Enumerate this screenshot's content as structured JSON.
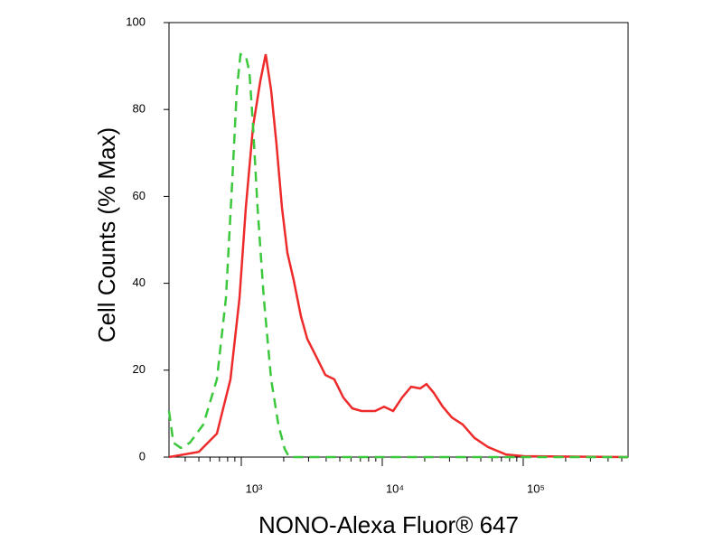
{
  "chart_data": {
    "type": "line",
    "y_label": "Cell Counts (% Max)",
    "x_label": "NONO-Alexa Fluor® 647",
    "xscale": "log",
    "xlim": [
      307,
      554600
    ],
    "xticks": [
      {
        "value": 1000,
        "label": "10³"
      },
      {
        "value": 10000,
        "label": "10⁴"
      },
      {
        "value": 100000,
        "label": "10⁵"
      }
    ],
    "ylim": [
      0,
      100
    ],
    "yticks": [
      0,
      20,
      40,
      60,
      80,
      100
    ],
    "series": [
      {
        "color": "#ee2a2a",
        "style": "solid",
        "x": [
          307,
          500,
          671,
          838,
          971,
          1077,
          1211,
          1364,
          1490,
          1628,
          1778,
          1942,
          2122,
          2355,
          2650,
          2938,
          3404,
          3945,
          4571,
          5297,
          6138,
          7120,
          8890,
          10300,
          11940,
          13830,
          16030,
          18570,
          20600,
          23180,
          26850,
          31180,
          37220,
          45080,
          56230,
          75510,
          101400,
          554600
        ],
        "values": [
          0,
          1.2,
          5.4,
          17.9,
          36.6,
          57.4,
          76.1,
          86.5,
          92.7,
          84.4,
          71.9,
          57.4,
          47.0,
          40.7,
          32.4,
          27.2,
          23.1,
          18.9,
          17.9,
          13.7,
          11.2,
          10.6,
          10.6,
          11.6,
          10.6,
          13.7,
          16.2,
          15.8,
          16.8,
          14.8,
          11.6,
          9.1,
          7.5,
          4.4,
          2.3,
          0.6,
          0.2,
          0
        ]
      },
      {
        "color": "#3cc83c",
        "style": "dashed",
        "x": [
          307,
          330,
          372,
          432,
          538,
          671,
          778,
          863,
          929,
          987,
          1077,
          1142,
          1211,
          1304,
          1445,
          1628,
          1833,
          2031,
          2188,
          554600
        ],
        "values": [
          10.6,
          3.3,
          2.1,
          3.3,
          7.5,
          17.9,
          36.6,
          63.6,
          84.4,
          92.7,
          92.3,
          88.6,
          76.1,
          57.4,
          36.6,
          17.9,
          7.5,
          1.9,
          0,
          0
        ]
      }
    ]
  }
}
